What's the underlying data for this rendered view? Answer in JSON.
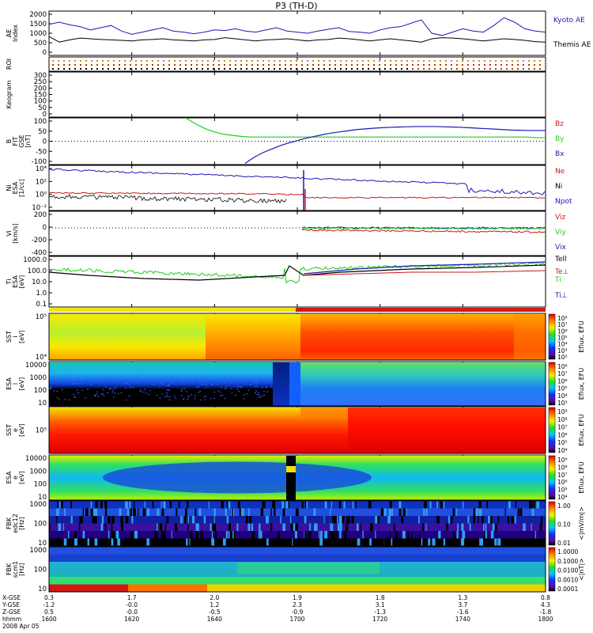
{
  "title": "P3 (TH-D)",
  "colors": {
    "blue": "#1a1ab4",
    "red": "#d01818",
    "green": "#22cc22",
    "black": "#000000",
    "yellow": "#f2e600",
    "orange": "#ff7a00"
  },
  "chart_data": {
    "type": "line",
    "x": {
      "start": "1600",
      "end": "1800",
      "unit": "hhmm",
      "date": "2008 Apr 05",
      "ticks": [
        "1600",
        "1620",
        "1640",
        "1700",
        "1720",
        "1740",
        "1800"
      ]
    },
    "footer": {
      "row_labels": [
        "X-GSE",
        "Y-GSE",
        "Z-GSE",
        "hhmm",
        "2008 Apr 05"
      ],
      "rows": [
        [
          "0.3",
          "1.7",
          "2.0",
          "1.9",
          "1.8",
          "1.3",
          "0.8"
        ],
        [
          "-1.2",
          "-0.0",
          "1.2",
          "2.3",
          "3.1",
          "3.7",
          "4.3"
        ],
        [
          "0.5",
          "-0.0",
          "-0.5",
          "-0.9",
          "-1.3",
          "-1.6",
          "-1.8"
        ],
        [
          "1600",
          "1620",
          "1640",
          "1700",
          "1720",
          "1740",
          "1800"
        ]
      ]
    },
    "panels": [
      {
        "id": "ae",
        "ylabel": "AE Index",
        "ylim": [
          0,
          2000
        ],
        "yticks": [
          "2000",
          "1500",
          "1000",
          "500",
          "0"
        ],
        "series": [
          {
            "name": "Kyoto AE",
            "color": "#1a1ab4",
            "values": [
              1400,
              1500,
              1380,
              1300,
              1150,
              1250,
              1350,
              1100,
              950,
              1050,
              1150,
              1250,
              1100,
              1050,
              980,
              1050,
              1150,
              1120,
              1200,
              1100,
              1050,
              1150,
              1250,
              1100,
              1050,
              1000,
              1100,
              1180,
              1250,
              1080,
              1050,
              1000,
              1150,
              1250,
              1300,
              1450,
              1600,
              1000,
              900,
              1050,
              1200,
              1100,
              1050,
              1350,
              1700,
              1500,
              1200,
              1100,
              1050
            ]
          },
          {
            "name": "Themis AE",
            "color": "#000000",
            "values": [
              850,
              600,
              700,
              780,
              750,
              720,
              700,
              680,
              650,
              700,
              720,
              750,
              700,
              680,
              650,
              700,
              720,
              800,
              750,
              700,
              650,
              700,
              720,
              750,
              700,
              650,
              700,
              720,
              780,
              750,
              700,
              650,
              700,
              750,
              700,
              650,
              600,
              750,
              800,
              780,
              750,
              700,
              650,
              700,
              750,
              720,
              680,
              620,
              600
            ]
          }
        ]
      },
      {
        "id": "roi",
        "ylabel": "ROI"
      },
      {
        "id": "keogram",
        "ylabel": "Keogram",
        "ylim": [
          0,
          300
        ],
        "yticks": [
          "300",
          "250",
          "200",
          "150",
          "100",
          "50",
          "0"
        ]
      },
      {
        "id": "bfit",
        "ylabel": "B FIT GSE [nT]",
        "ylim": [
          -100,
          100
        ],
        "yticks": [
          "100",
          "50",
          "0",
          "-50",
          "-100"
        ],
        "series": [
          {
            "name": "Bz",
            "color": "#d01818",
            "values": []
          },
          {
            "name": "By",
            "color": "#22cc22",
            "values": [
              100,
              75,
              55,
              40,
              30,
              25,
              20,
              18,
              18,
              18,
              18,
              18,
              18,
              18,
              18,
              18,
              18,
              18,
              18,
              18,
              18,
              18,
              18,
              18,
              18,
              18,
              18,
              18,
              18,
              18,
              18,
              18,
              18,
              18,
              18,
              18,
              18,
              15,
              15
            ]
          },
          {
            "name": "Bx",
            "color": "#1a1ab4",
            "values": [
              -95,
              -70,
              -50,
              -35,
              -20,
              -8,
              2,
              12,
              20,
              28,
              35,
              40,
              45,
              50,
              53,
              56,
              58,
              60,
              61,
              62,
              63,
              63,
              63,
              62,
              61,
              60,
              58,
              56,
              54,
              52,
              50,
              48,
              47,
              46,
              46,
              46
            ]
          }
        ]
      },
      {
        "id": "ni",
        "ylabel": "Ni ESA [1/cc]",
        "yticks": [
          "10⁴",
          "10²",
          "10⁰",
          "10⁻²"
        ],
        "series": [
          {
            "name": "Ne",
            "color": "#d01818"
          },
          {
            "name": "Ni",
            "color": "#000000"
          },
          {
            "name": "Npot",
            "color": "#1a1ab4"
          }
        ]
      },
      {
        "id": "vi",
        "ylabel": "Vi [km/s]",
        "ylim": [
          -500,
          300
        ],
        "yticks": [
          "200",
          "0",
          "-200",
          "-400"
        ],
        "series": [
          {
            "name": "Viz",
            "color": "#d01818"
          },
          {
            "name": "Viy",
            "color": "#22cc22"
          },
          {
            "name": "Vix",
            "color": "#1a1ab4"
          }
        ]
      },
      {
        "id": "ti",
        "ylabel": "Ti ESA [eV]",
        "yticks": [
          "1000.0",
          "100.0",
          "10.0",
          "1.0",
          "0.1"
        ],
        "series": [
          {
            "name": "Tell",
            "color": "#000000"
          },
          {
            "name": "Te⊥",
            "color": "#d01818"
          },
          {
            "name": "Ti",
            "color": "#22cc22"
          },
          {
            "name": "Ti⊥",
            "color": "#1a1ab4"
          }
        ]
      },
      {
        "id": "sst_i",
        "type": "heatmap",
        "ylabel": "SST i [eV]",
        "yticks": [
          "10⁵",
          "10⁴"
        ],
        "colorbar": {
          "label": "Eflux, EFU",
          "ticks": [
            "10⁸",
            "10⁷",
            "10⁶",
            "10⁵",
            "10⁴",
            "10³",
            "10²"
          ]
        }
      },
      {
        "id": "esa_i",
        "type": "heatmap",
        "ylabel": "ESA i [eV]",
        "yticks": [
          "10000",
          "1000",
          "100",
          "10"
        ],
        "colorbar": {
          "label": "Eflux, EFU",
          "ticks": [
            "10⁸",
            "10⁷",
            "10⁶",
            "10⁵",
            "10⁴",
            "10³"
          ]
        }
      },
      {
        "id": "sst_e",
        "type": "heatmap",
        "ylabel": "SST e [eV]",
        "yticks": [
          "10⁵"
        ],
        "colorbar": {
          "label": "Eflux, EFU",
          "ticks": [
            "10⁹",
            "10⁸",
            "10⁷",
            "10⁶",
            "10⁵",
            "10⁴"
          ]
        }
      },
      {
        "id": "esa_e",
        "type": "heatmap",
        "ylabel": "ESA e [eV]",
        "yticks": [
          "10000",
          "1000",
          "100",
          "10"
        ],
        "colorbar": {
          "label": "Eflux, EFU",
          "ticks": [
            "10⁹",
            "10⁸",
            "10⁷",
            "10⁶",
            "10⁵",
            "10⁴"
          ]
        }
      },
      {
        "id": "fbk_e",
        "type": "heatmap",
        "ylabel": "FBK edc12 [Hz]",
        "yticks": [
          "1000",
          "100",
          "10"
        ],
        "colorbar": {
          "label": "<|mV/m|>",
          "ticks": [
            "1.00",
            "0.10",
            "0.01"
          ]
        }
      },
      {
        "id": "fbk_b",
        "type": "heatmap",
        "ylabel": "FBK scm1 [Hz]",
        "yticks": [
          "1000",
          "100",
          "10"
        ],
        "colorbar": {
          "label": "<|nT|>",
          "ticks": [
            "1.0000",
            "0.1000",
            "0.0100",
            "0.0010",
            "0.0001"
          ]
        }
      }
    ]
  }
}
